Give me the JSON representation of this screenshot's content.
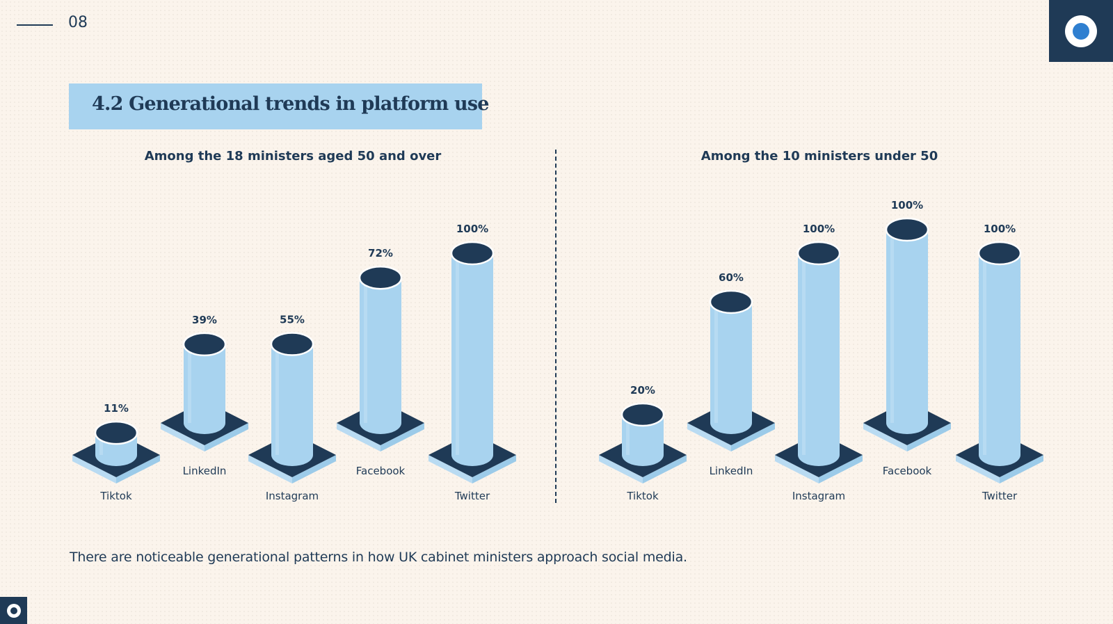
{
  "page_number": "08",
  "title": "4.2 Generational trends in platform use",
  "caption": "There are noticeable generational patterns in how UK cabinet ministers approach social media.",
  "colors": {
    "cylinder": "#a8d3ef",
    "dark": "#1f3a56",
    "base_side": "#b9dbf2",
    "background": "#fbf4ec"
  },
  "chart_data": [
    {
      "type": "bar",
      "title": "Among the 18 ministers aged 50 and over",
      "categories": [
        "Tiktok",
        "LinkedIn",
        "Instagram",
        "Facebook",
        "Twitter"
      ],
      "values": [
        11,
        39,
        55,
        72,
        100
      ],
      "value_labels": [
        "11%",
        "39%",
        "55%",
        "72%",
        "100%"
      ],
      "ylim": [
        0,
        100
      ]
    },
    {
      "type": "bar",
      "title": "Among the 10 ministers under 50",
      "categories": [
        "Tiktok",
        "LinkedIn",
        "Instagram",
        "Facebook",
        "Twitter"
      ],
      "values": [
        20,
        60,
        100,
        100,
        100
      ],
      "value_labels": [
        "20%",
        "60%",
        "100%",
        "100%",
        "100%"
      ],
      "ylim": [
        0,
        100
      ]
    }
  ]
}
